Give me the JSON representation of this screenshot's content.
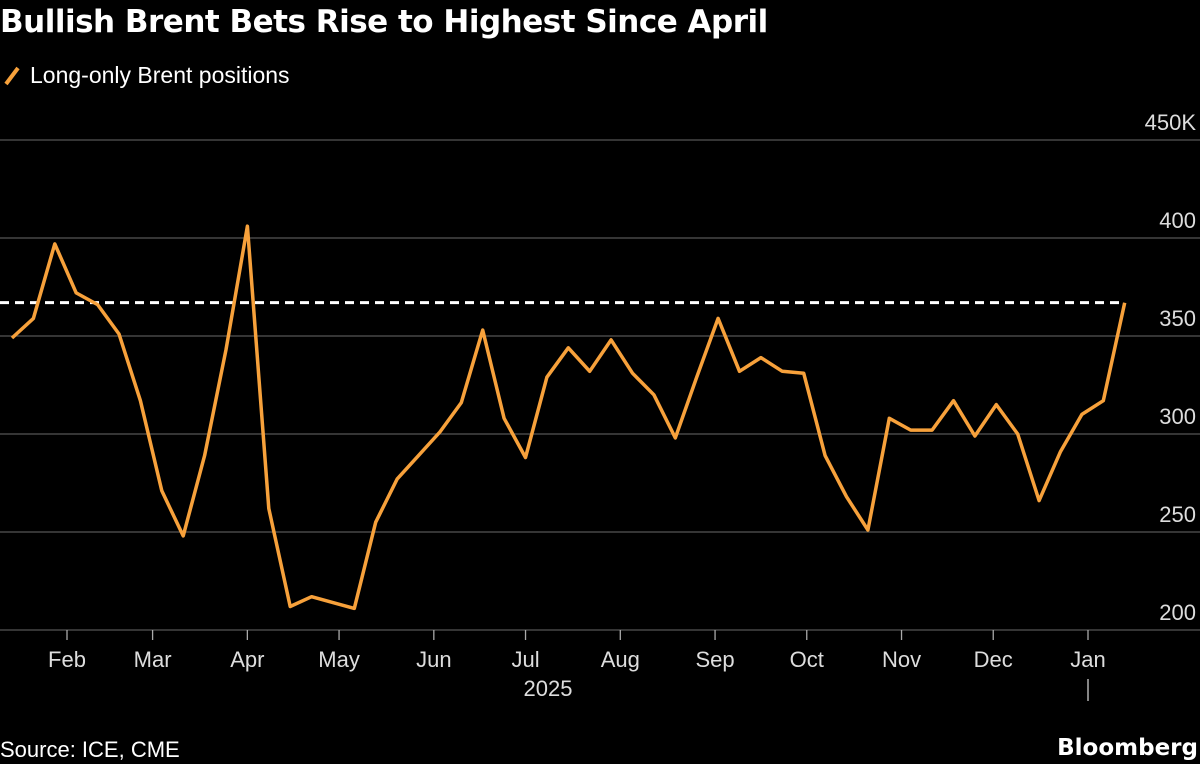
{
  "title": "Bullish Brent Bets Rise to Highest Since April",
  "source": "Source: ICE, CME",
  "brand": "Bloomberg",
  "chart_data": {
    "type": "line",
    "title": "Bullish Brent Bets Rise to Highest Since April",
    "legend_position": "top-left",
    "grid": true,
    "series": [
      {
        "name": "Long-only Brent positions",
        "color": "#f7a13b",
        "x": [
          "2025-01-14",
          "2025-01-21",
          "2025-01-28",
          "2025-02-04",
          "2025-02-11",
          "2025-02-18",
          "2025-02-25",
          "2025-03-04",
          "2025-03-11",
          "2025-03-18",
          "2025-03-25",
          "2025-04-01",
          "2025-04-08",
          "2025-04-15",
          "2025-04-22",
          "2025-04-29",
          "2025-05-06",
          "2025-05-13",
          "2025-05-20",
          "2025-05-27",
          "2025-06-03",
          "2025-06-10",
          "2025-06-17",
          "2025-06-24",
          "2025-07-01",
          "2025-07-08",
          "2025-07-15",
          "2025-07-22",
          "2025-07-29",
          "2025-08-05",
          "2025-08-12",
          "2025-08-19",
          "2025-08-26",
          "2025-09-02",
          "2025-09-09",
          "2025-09-16",
          "2025-09-23",
          "2025-09-30",
          "2025-10-07",
          "2025-10-14",
          "2025-10-21",
          "2025-10-28",
          "2025-11-04",
          "2025-11-11",
          "2025-11-18",
          "2025-11-25",
          "2025-12-02",
          "2025-12-09",
          "2025-12-16",
          "2025-12-23",
          "2025-12-30",
          "2026-01-06",
          "2026-01-13"
        ],
        "values": [
          349,
          359,
          397,
          372,
          366,
          351,
          317,
          271,
          248,
          289,
          343,
          406,
          262,
          212,
          217,
          214,
          211,
          255,
          277,
          289,
          301,
          316,
          353,
          308,
          288,
          329,
          344,
          332,
          348,
          331,
          320,
          298,
          329,
          359,
          332,
          339,
          332,
          331,
          289,
          268,
          251,
          308,
          302,
          302,
          317,
          299,
          315,
          300,
          266,
          291,
          310,
          317,
          367
        ]
      }
    ],
    "reference_line": {
      "value": 367,
      "style": "dashed",
      "color": "#ffffff"
    },
    "ylim": [
      200,
      450
    ],
    "y_ticks": [
      200,
      250,
      300,
      350,
      400,
      450
    ],
    "y_tick_labels": [
      "200",
      "250",
      "300",
      "350",
      "400",
      "450K"
    ],
    "x_ticks": [
      "2025-02-01",
      "2025-03-01",
      "2025-04-01",
      "2025-05-01",
      "2025-06-01",
      "2025-07-01",
      "2025-08-01",
      "2025-09-01",
      "2025-10-01",
      "2025-11-01",
      "2025-12-01",
      "2026-01-01"
    ],
    "x_tick_labels": [
      "Feb",
      "Mar",
      "Apr",
      "May",
      "Jun",
      "Jul",
      "Aug",
      "Sep",
      "Oct",
      "Nov",
      "Dec",
      "Jan"
    ],
    "year_label": "2025"
  }
}
